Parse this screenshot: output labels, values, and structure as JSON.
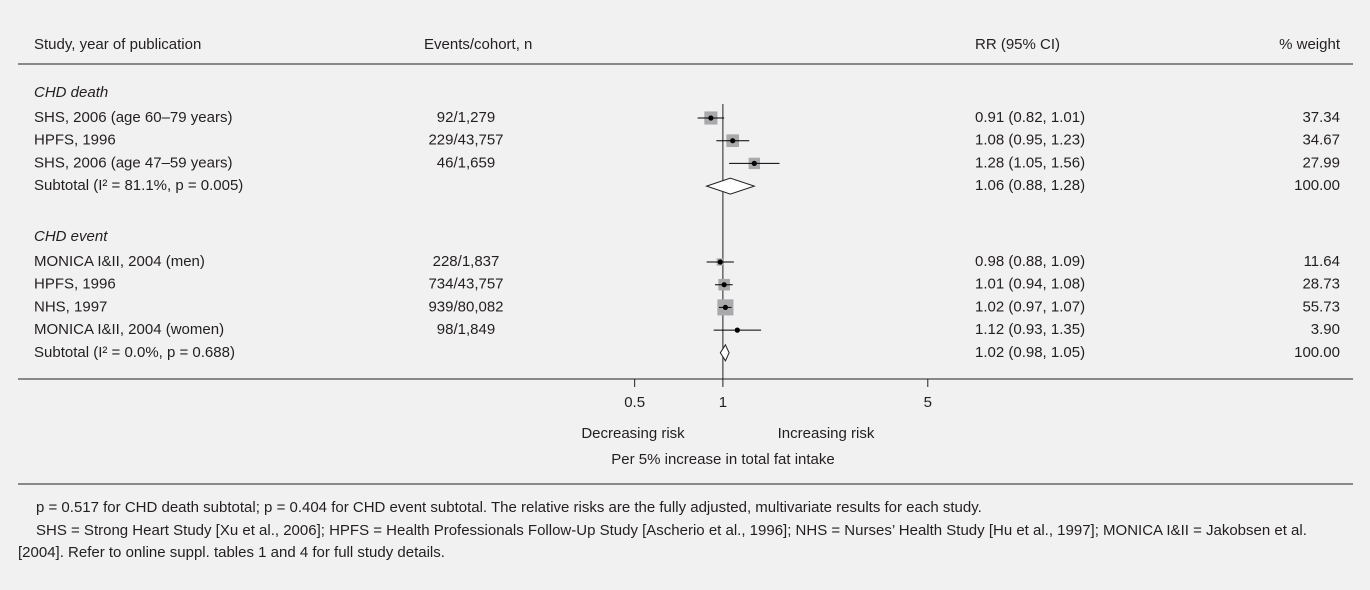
{
  "chart_data": {
    "type": "forest",
    "columns": [
      "Study, year of publication",
      "Events/cohort, n",
      "RR (95% CI)",
      "% weight"
    ],
    "log_x": true,
    "xlim": [
      0.2,
      6
    ],
    "xticks": [
      0.5,
      1,
      5
    ],
    "left_label": "Decreasing risk",
    "right_label": "Increasing risk",
    "xlabel": "Per 5% increase in total fat intake",
    "square_color": "#a9a9ab",
    "point_color": "#000000",
    "groups": [
      {
        "name": "CHD death",
        "studies": [
          {
            "label": "SHS, 2006 (age 60–79 years)",
            "events": "92/1,279",
            "rr": 0.91,
            "lo": 0.82,
            "hi": 1.01,
            "rr_label": "0.91 (0.82, 1.01)",
            "weight": 37.34
          },
          {
            "label": "HPFS, 1996",
            "events": "229/43,757",
            "rr": 1.08,
            "lo": 0.95,
            "hi": 1.23,
            "rr_label": "1.08 (0.95, 1.23)",
            "weight": 34.67
          },
          {
            "label": "SHS, 2006 (age 47–59 years)",
            "events": "46/1,659",
            "rr": 1.28,
            "lo": 1.05,
            "hi": 1.56,
            "rr_label": "1.28 (1.05, 1.56)",
            "weight": 27.99
          }
        ],
        "subtotal": {
          "label": "Subtotal (I² = 81.1%, p = 0.005)",
          "rr": 1.06,
          "lo": 0.88,
          "hi": 1.28,
          "rr_label": "1.06 (0.88, 1.28)",
          "weight": {
            "value": 100,
            "label": "100.00"
          }
        }
      },
      {
        "name": "CHD event",
        "studies": [
          {
            "label": "MONICA I&II, 2004 (men)",
            "events": "228/1,837",
            "rr": 0.98,
            "lo": 0.88,
            "hi": 1.09,
            "rr_label": "0.98 (0.88, 1.09)",
            "weight": 11.64
          },
          {
            "label": "HPFS, 1996",
            "events": "734/43,757",
            "rr": 1.01,
            "lo": 0.94,
            "hi": 1.08,
            "rr_label": "1.01 (0.94, 1.08)",
            "weight": 28.73
          },
          {
            "label": "NHS, 1997",
            "events": "939/80,082",
            "rr": 1.02,
            "lo": 0.97,
            "hi": 1.07,
            "rr_label": "1.02 (0.97, 1.07)",
            "weight": 55.73
          },
          {
            "label": "MONICA I&II, 2004 (women)",
            "events": "98/1,849",
            "rr": 1.12,
            "lo": 0.93,
            "hi": 1.35,
            "rr_label": "1.12 (0.93, 1.35)",
            "weight": {
              "value": 3.9,
              "label": "3.90"
            }
          }
        ],
        "subtotal": {
          "label": "Subtotal (I² = 0.0%, p = 0.688)",
          "rr": 1.02,
          "lo": 0.98,
          "hi": 1.05,
          "rr_label": "1.02 (0.98, 1.05)",
          "weight": {
            "value": 100,
            "label": "100.00"
          }
        }
      }
    ],
    "notes": [
      "p = 0.517 for CHD death subtotal; p = 0.404 for CHD event subtotal. The relative risks are the fully adjusted, multivariate results for each study.",
      "SHS = Strong Heart Study [Xu et al., 2006]; HPFS = Health Professionals Follow-Up Study [Ascherio et al., 1996]; NHS = Nurses’ Health Study [Hu et al., 1997]; MONICA I&II = Jakobsen et al. [2004]. Refer to online suppl. tables 1 and 4 for full study details."
    ]
  }
}
